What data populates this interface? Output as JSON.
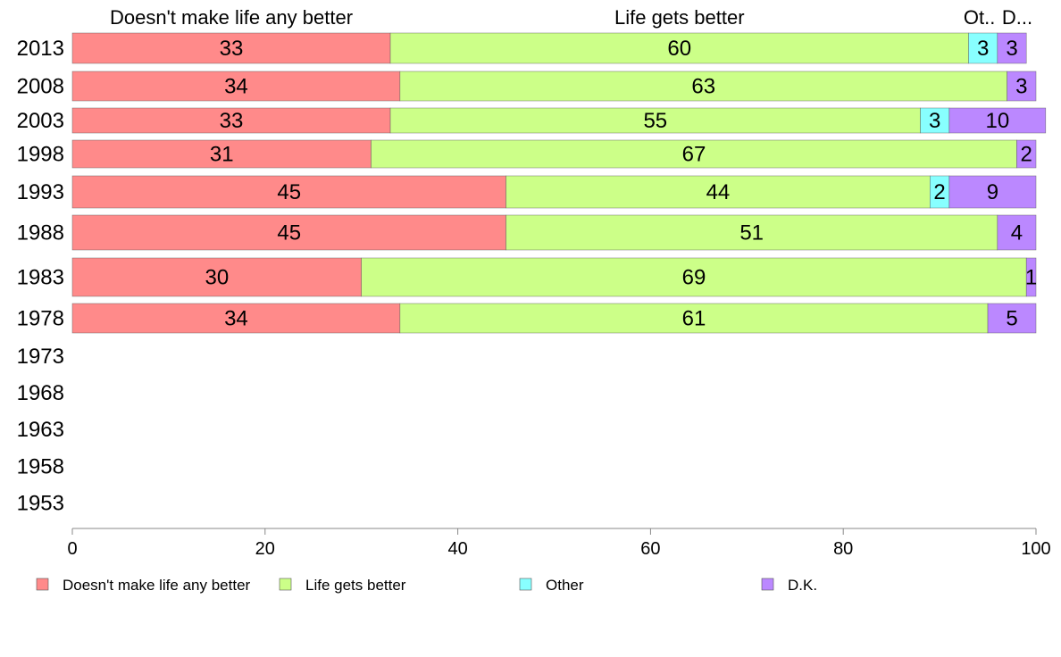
{
  "chart_data": {
    "type": "bar",
    "orientation": "horizontal",
    "stacked": true,
    "categories": [
      "2013",
      "2008",
      "2003",
      "1998",
      "1993",
      "1988",
      "1983",
      "1978",
      "1973",
      "1968",
      "1963",
      "1958",
      "1953"
    ],
    "series": [
      {
        "name": "Doesn't make life any better",
        "color": "#FF8A8A",
        "values": [
          33,
          34,
          33,
          31,
          45,
          45,
          30,
          34,
          null,
          null,
          null,
          null,
          null
        ]
      },
      {
        "name": "Life gets better",
        "color": "#CCFF88",
        "values": [
          60,
          63,
          55,
          67,
          44,
          51,
          69,
          61,
          null,
          null,
          null,
          null,
          null
        ]
      },
      {
        "name": "Other",
        "color": "#88FFFF",
        "values": [
          3,
          0,
          3,
          0,
          2,
          0,
          0,
          0,
          null,
          null,
          null,
          null,
          null
        ]
      },
      {
        "name": "D.K.",
        "color": "#BB88FF",
        "values": [
          3,
          3,
          10,
          2,
          9,
          4,
          1,
          5,
          null,
          null,
          null,
          null,
          null
        ]
      }
    ],
    "segment_headers": [
      "Doesn't make life any better",
      "Life gets better",
      "Ot..",
      "D..."
    ],
    "xlim": [
      0,
      100
    ],
    "xticks": [
      0,
      20,
      40,
      60,
      80,
      100
    ],
    "grid": false,
    "legend_position": "bottom"
  }
}
